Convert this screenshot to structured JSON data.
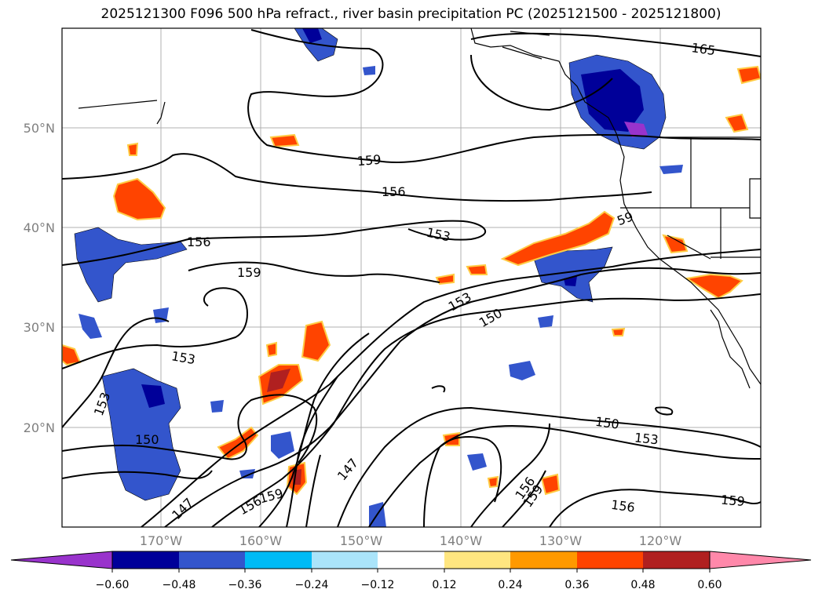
{
  "title": "2025121300 F096 500 hPa refract., river basin precipitation PC (2025121500 - 2025121800)",
  "latitude_labels": [
    "50°N",
    "40°N",
    "30°N",
    "20°N"
  ],
  "longitude_labels": [
    "170°W",
    "160°W",
    "150°W",
    "140°W",
    "130°W",
    "120°W"
  ],
  "contour_labels": [
    "165",
    "159",
    "156",
    "153",
    "156",
    "159",
    "59",
    "153",
    "150",
    "153",
    "150",
    "153",
    "147",
    "156",
    "159",
    "156",
    "159",
    "147",
    "150",
    "153",
    "156",
    "159"
  ],
  "colorbar": {
    "ticks": [
      "−0.60",
      "−0.48",
      "−0.36",
      "−0.24",
      "−0.12",
      "0.12",
      "0.24",
      "0.36",
      "0.48",
      "0.60"
    ],
    "colors": [
      "#9933cc",
      "#000099",
      "#3355cc",
      "#00bbf5",
      "#aae4fa",
      "#ffffff",
      "#ffe680",
      "#ff9900",
      "#ff4400",
      "#b02020",
      "#ff88aa"
    ]
  }
}
